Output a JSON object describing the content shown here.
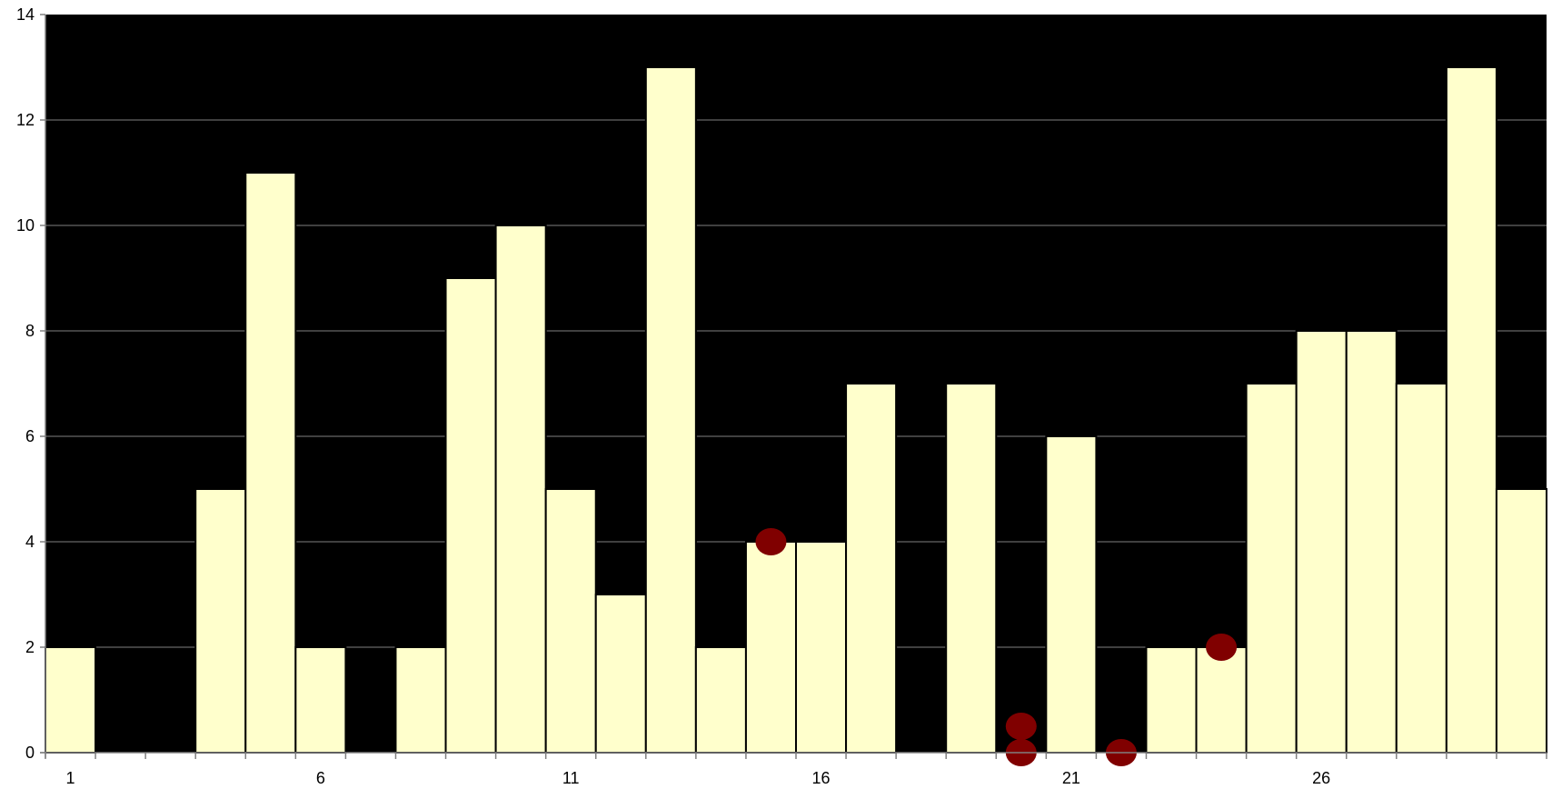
{
  "chart_data": {
    "type": "bar",
    "categories": [
      "1",
      "2",
      "3",
      "4",
      "5",
      "6",
      "7",
      "8",
      "9",
      "10",
      "11",
      "12",
      "13",
      "14",
      "15",
      "16",
      "17",
      "18",
      "19",
      "20",
      "21",
      "22",
      "23",
      "24",
      "25",
      "26",
      "27",
      "28",
      "29",
      "30"
    ],
    "x_tick_labels": [
      "1",
      "6",
      "11",
      "16",
      "21",
      "26"
    ],
    "y_tick_labels": [
      "0",
      "2",
      "4",
      "6",
      "8",
      "10",
      "12",
      "14"
    ],
    "values": [
      2,
      0,
      0,
      5,
      11,
      2,
      0,
      2,
      9,
      10,
      5,
      3,
      13,
      2,
      4,
      4,
      7,
      0,
      7,
      0,
      6,
      0,
      2,
      2,
      7,
      8,
      8,
      7,
      13,
      5
    ],
    "markers": [
      {
        "x": 15,
        "y": 4
      },
      {
        "x": 20,
        "y": 0.5
      },
      {
        "x": 20,
        "y": 0
      },
      {
        "x": 22,
        "y": 0
      },
      {
        "x": 24,
        "y": 2
      }
    ],
    "title": "",
    "xlabel": "",
    "ylabel": "",
    "ylim": [
      0,
      14
    ],
    "grid": true,
    "legend": "none",
    "colors": {
      "plot_background": "#000000",
      "bar_fill": "#FFFFCC",
      "bar_stroke": "#000000",
      "gridline": "#808080",
      "marker_fill": "#800000",
      "axis": "#808080"
    }
  }
}
